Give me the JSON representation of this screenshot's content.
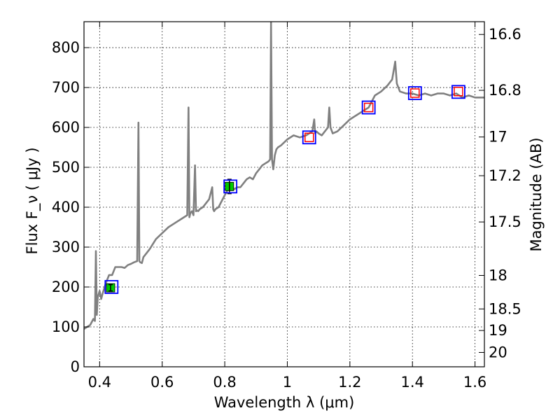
{
  "chart_data": {
    "type": "line",
    "xlabel": "Wavelength  λ (μm)",
    "ylabel": "Flux  F_ν  ( μJy )",
    "ylabel_right": "Magnitude (AB)",
    "xlim": [
      0.35,
      1.63
    ],
    "ylim": [
      0,
      865
    ],
    "grid": true,
    "x_ticks": [
      0.4,
      0.6,
      0.8,
      1.0,
      1.2,
      1.4,
      1.6
    ],
    "x_tick_labels": [
      "0.4",
      "0.6",
      "0.8",
      "1",
      "1.2",
      "1.4",
      "1.6"
    ],
    "y_ticks": [
      0,
      100,
      200,
      300,
      400,
      500,
      600,
      700,
      800
    ],
    "y_tick_labels": [
      "0",
      "100",
      "200",
      "300",
      "400",
      "500",
      "600",
      "700",
      "800"
    ],
    "right_ticks": [
      {
        "label": "16.6",
        "flux": 833
      },
      {
        "label": "16.8",
        "flux": 693
      },
      {
        "label": "17",
        "flux": 576
      },
      {
        "label": "17.2",
        "flux": 479
      },
      {
        "label": "17.5",
        "flux": 363
      },
      {
        "label": "18",
        "flux": 229
      },
      {
        "label": "18.5",
        "flux": 145
      },
      {
        "label": "19",
        "flux": 91
      },
      {
        "label": "20",
        "flux": 36
      }
    ],
    "series": [
      {
        "kind": "spectrum",
        "color": "#808080",
        "x": [
          0.35,
          0.36,
          0.37,
          0.38,
          0.385,
          0.388,
          0.391,
          0.394,
          0.4,
          0.405,
          0.41,
          0.42,
          0.43,
          0.44,
          0.45,
          0.46,
          0.47,
          0.48,
          0.49,
          0.5,
          0.51,
          0.52,
          0.524,
          0.527,
          0.53,
          0.535,
          0.54,
          0.56,
          0.58,
          0.6,
          0.62,
          0.64,
          0.66,
          0.68,
          0.684,
          0.687,
          0.69,
          0.695,
          0.7,
          0.705,
          0.708,
          0.711,
          0.715,
          0.72,
          0.73,
          0.74,
          0.75,
          0.76,
          0.763,
          0.766,
          0.77,
          0.78,
          0.79,
          0.8,
          0.81,
          0.82,
          0.83,
          0.84,
          0.85,
          0.86,
          0.87,
          0.88,
          0.89,
          0.9,
          0.91,
          0.92,
          0.93,
          0.94,
          0.945,
          0.948,
          0.951,
          0.955,
          0.96,
          0.965,
          0.97,
          0.98,
          1.0,
          1.02,
          1.04,
          1.06,
          1.08,
          1.086,
          1.089,
          1.093,
          1.1,
          1.11,
          1.12,
          1.13,
          1.134,
          1.138,
          1.145,
          1.16,
          1.18,
          1.2,
          1.22,
          1.24,
          1.26,
          1.28,
          1.3,
          1.32,
          1.335,
          1.345,
          1.35,
          1.36,
          1.38,
          1.4,
          1.42,
          1.44,
          1.46,
          1.48,
          1.5,
          1.52,
          1.54,
          1.56,
          1.58,
          1.6,
          1.62,
          1.63
        ],
        "y": [
          95,
          100,
          105,
          120,
          115,
          290,
          130,
          175,
          190,
          170,
          185,
          210,
          230,
          230,
          250,
          250,
          250,
          248,
          255,
          258,
          262,
          265,
          612,
          265,
          262,
          260,
          275,
          295,
          320,
          335,
          350,
          360,
          370,
          380,
          650,
          375,
          385,
          390,
          380,
          505,
          390,
          392,
          390,
          395,
          400,
          410,
          420,
          450,
          395,
          390,
          395,
          400,
          415,
          430,
          445,
          455,
          445,
          450,
          450,
          460,
          470,
          475,
          470,
          485,
          495,
          505,
          510,
          515,
          520,
          865,
          520,
          495,
          530,
          545,
          550,
          555,
          570,
          580,
          575,
          580,
          590,
          620,
          585,
          590,
          585,
          580,
          590,
          600,
          650,
          600,
          585,
          590,
          605,
          620,
          630,
          640,
          650,
          680,
          690,
          705,
          720,
          765,
          710,
          690,
          685,
          685,
          680,
          685,
          680,
          685,
          685,
          680,
          685,
          675,
          680,
          675,
          675,
          675
        ]
      },
      {
        "kind": "photometry_filled",
        "color": "#00cc00",
        "points": [
          {
            "x": 0.435,
            "y": 198,
            "err": 8
          },
          {
            "x": 0.815,
            "y": 452,
            "err": 18
          }
        ]
      },
      {
        "kind": "model_open_squares",
        "color": "#0000ff",
        "points": [
          {
            "x": 0.438,
            "y": 200
          },
          {
            "x": 0.818,
            "y": 452
          },
          {
            "x": 1.07,
            "y": 575
          },
          {
            "x": 1.26,
            "y": 650
          },
          {
            "x": 1.408,
            "y": 686
          },
          {
            "x": 1.547,
            "y": 689
          }
        ]
      },
      {
        "kind": "photometry_open",
        "color": "#ff0000",
        "points": [
          {
            "x": 1.07,
            "y": 575
          },
          {
            "x": 1.26,
            "y": 650
          },
          {
            "x": 1.408,
            "y": 686
          },
          {
            "x": 1.547,
            "y": 690
          }
        ]
      }
    ]
  }
}
